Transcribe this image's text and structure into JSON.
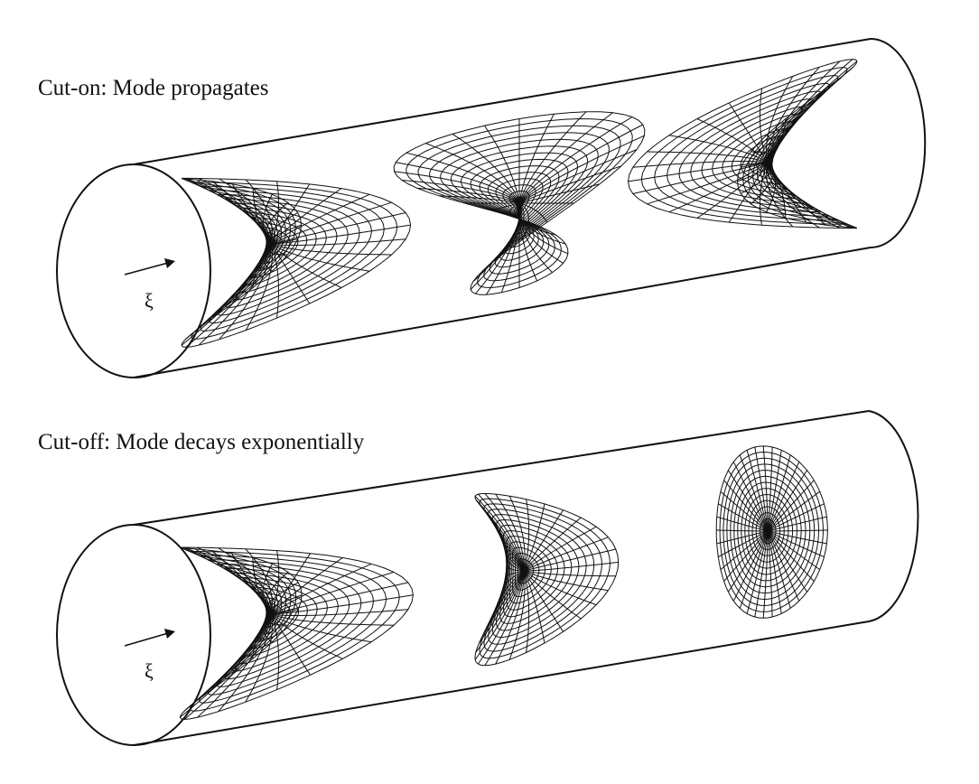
{
  "panels": [
    {
      "caption": "Cut-on: Mode propagates",
      "direction_symbol": "ξ",
      "amplitudes": [
        1.0,
        1.0,
        1.0
      ]
    },
    {
      "caption": "Cut-off: Mode decays exponentially",
      "direction_symbol": "ξ",
      "amplitudes": [
        1.0,
        0.45,
        0.05
      ]
    }
  ],
  "colors": {
    "line": "#111111",
    "background": "#ffffff"
  }
}
